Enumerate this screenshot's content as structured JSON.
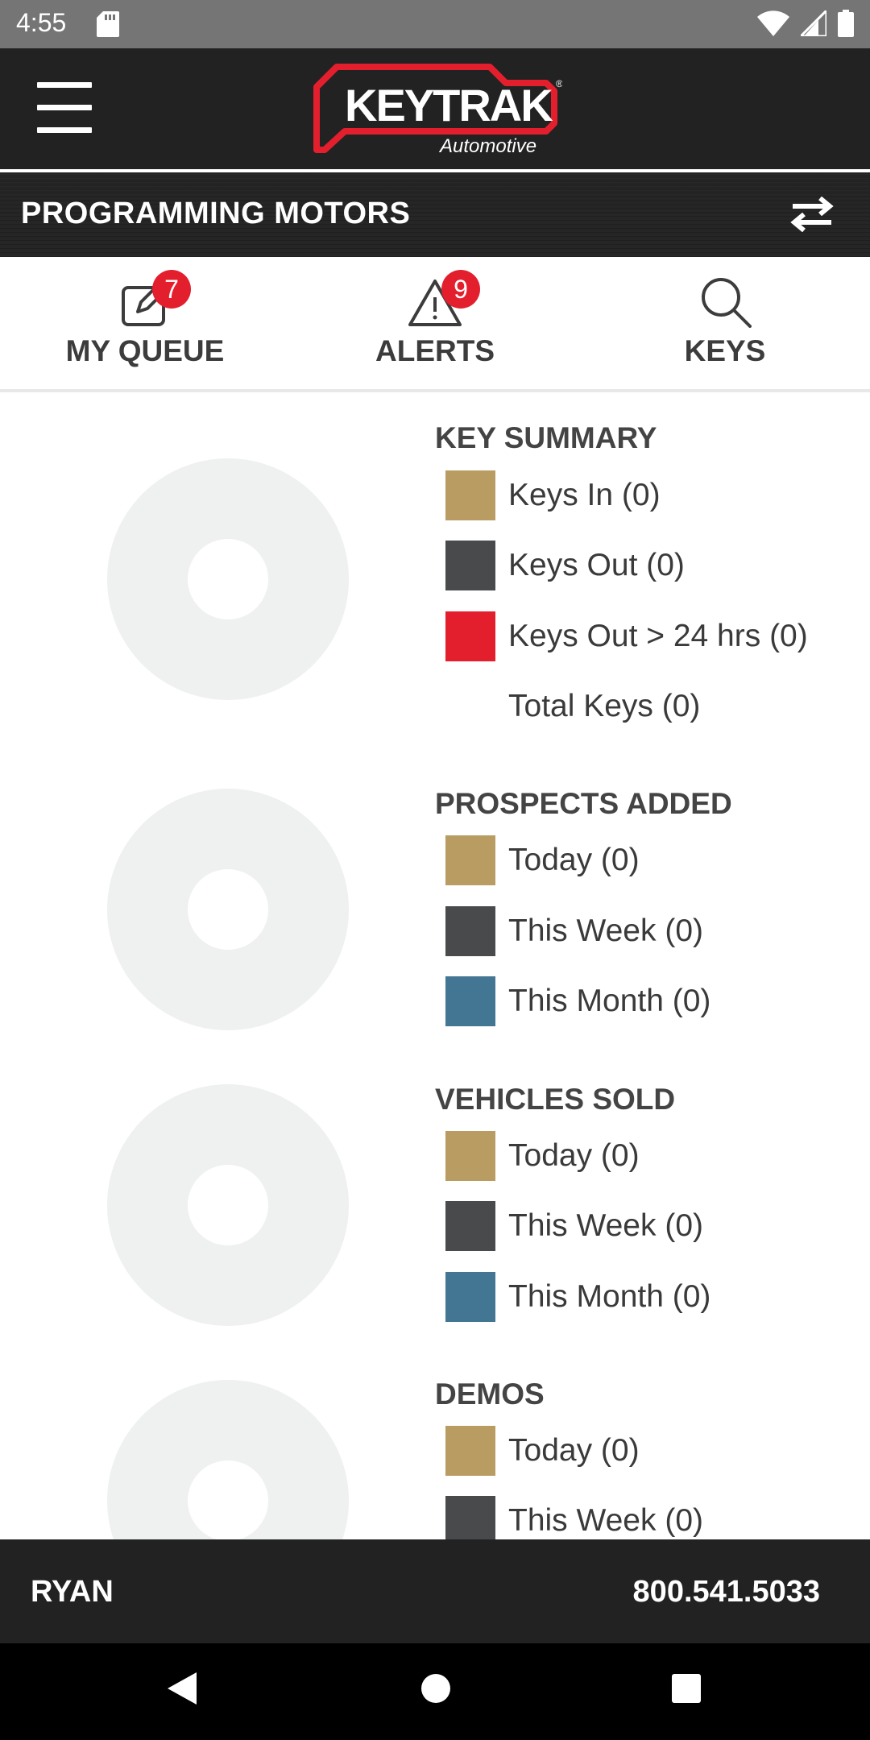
{
  "status_bar": {
    "time": "4:55",
    "icons": [
      "sd-card-icon",
      "wifi-icon",
      "cell-signal-icon",
      "battery-icon"
    ]
  },
  "header": {
    "logo_text": "KEYTRAK",
    "logo_subtext": "Automotive",
    "menu_icon": "hamburger-menu-icon"
  },
  "dealer_bar": {
    "name": "PROGRAMMING MOTORS",
    "swap_icon": "swap-arrows-icon"
  },
  "tabs": [
    {
      "label": "MY QUEUE",
      "icon": "edit-note-icon",
      "badge": "7"
    },
    {
      "label": "ALERTS",
      "icon": "warning-triangle-icon",
      "badge": "9"
    },
    {
      "label": "KEYS",
      "icon": "search-icon",
      "badge": ""
    }
  ],
  "colors": {
    "gold": "#b89c62",
    "dark_gray": "#484a4b",
    "red": "#e31f2d",
    "steel_blue": "#427692",
    "donut_empty": "#eff0f0"
  },
  "sections": [
    {
      "title": "KEY SUMMARY",
      "items": [
        {
          "label": "Keys In (0)",
          "color": "#b89c62"
        },
        {
          "label": "Keys Out (0)",
          "color": "#484a4b"
        },
        {
          "label": "Keys Out > 24 hrs (0)",
          "color": "#e31f2d"
        },
        {
          "label": "Total Keys (0)",
          "color": ""
        }
      ]
    },
    {
      "title": "PROSPECTS ADDED",
      "items": [
        {
          "label": "Today (0)",
          "color": "#b89c62"
        },
        {
          "label": "This Week (0)",
          "color": "#484a4b"
        },
        {
          "label": "This Month (0)",
          "color": "#427692"
        }
      ]
    },
    {
      "title": "VEHICLES SOLD",
      "items": [
        {
          "label": "Today (0)",
          "color": "#b89c62"
        },
        {
          "label": "This Week (0)",
          "color": "#484a4b"
        },
        {
          "label": "This Month (0)",
          "color": "#427692"
        }
      ]
    },
    {
      "title": "DEMOS",
      "items": [
        {
          "label": "Today (0)",
          "color": "#b89c62"
        },
        {
          "label": "This Week (0)",
          "color": "#484a4b"
        }
      ]
    }
  ],
  "footer": {
    "user": "RYAN",
    "phone": "800.541.5033"
  },
  "android_nav": [
    "back-icon",
    "home-icon",
    "recents-icon"
  ]
}
